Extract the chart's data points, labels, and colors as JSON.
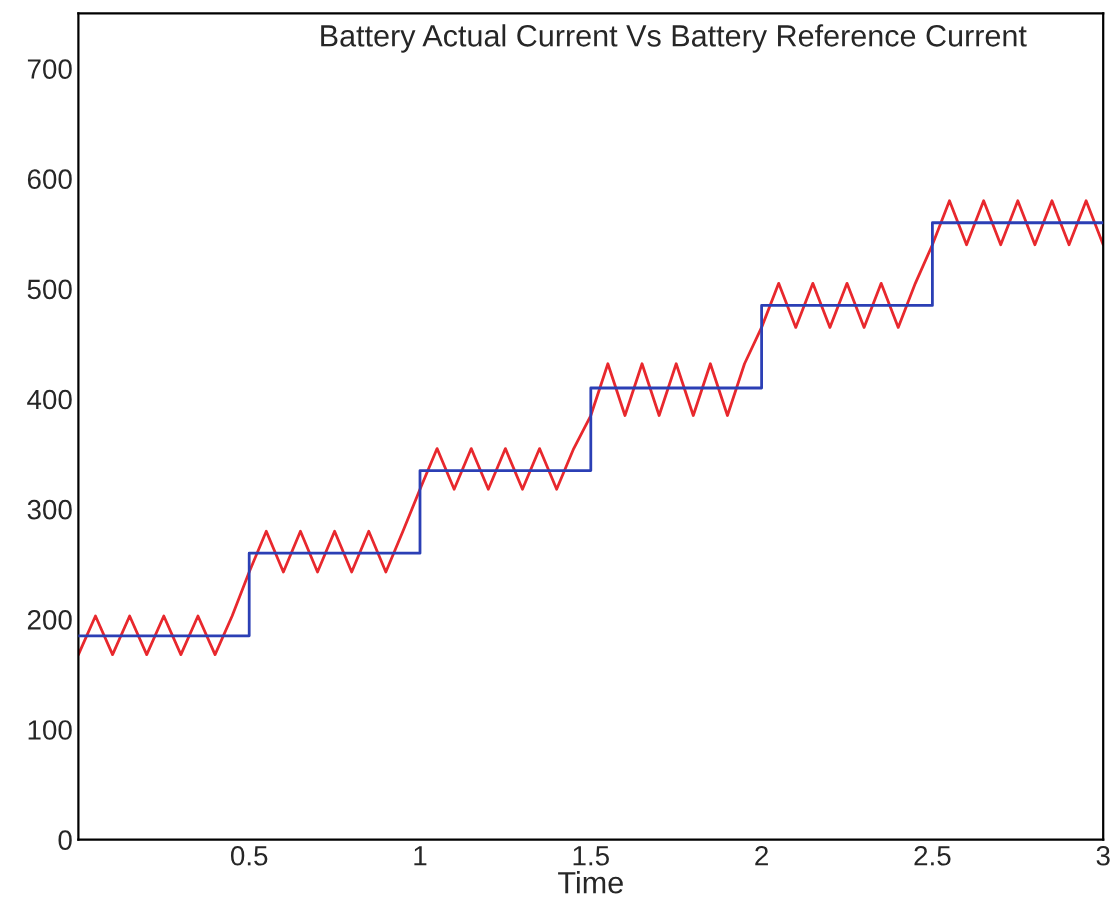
{
  "chart_data": {
    "type": "line",
    "title": "Battery Actual Current Vs Battery Reference Current",
    "xlabel": "Time",
    "xlim": [
      0,
      3
    ],
    "xticks": [
      {
        "value": 0,
        "label": null
      },
      0.5,
      1,
      1.5,
      2,
      2.5,
      3
    ],
    "ylim": [
      0,
      750
    ],
    "yticks": [
      0,
      100,
      200,
      300,
      400,
      500,
      600,
      700
    ],
    "grid": false,
    "legend": false,
    "series": [
      {
        "color": "#e8282d",
        "x": [
          0,
          0.05,
          0.1,
          0.15,
          0.2,
          0.25,
          0.3,
          0.35,
          0.4,
          0.45,
          0.5,
          0.55,
          0.6,
          0.65,
          0.7,
          0.75,
          0.8,
          0.85,
          0.9,
          0.95,
          1,
          1.05,
          1.1,
          1.15,
          1.2,
          1.25,
          1.3,
          1.35,
          1.4,
          1.45,
          1.5,
          1.55,
          1.6,
          1.65,
          1.7,
          1.75,
          1.8,
          1.85,
          1.9,
          1.95,
          2,
          2.05,
          2.1,
          2.15,
          2.2,
          2.25,
          2.3,
          2.35,
          2.4,
          2.45,
          2.5,
          2.55,
          2.6,
          2.65,
          2.7,
          2.75,
          2.8,
          2.85,
          2.9,
          2.95,
          3
        ],
        "values": [
          168,
          203,
          168,
          203,
          168,
          203,
          168,
          203,
          168,
          203,
          243,
          280,
          243,
          280,
          243,
          280,
          243,
          280,
          243,
          280,
          318,
          355,
          318,
          355,
          318,
          355,
          318,
          355,
          318,
          355,
          385,
          432,
          385,
          432,
          385,
          432,
          385,
          432,
          385,
          432,
          465,
          505,
          465,
          505,
          465,
          505,
          465,
          505,
          465,
          505,
          540,
          580,
          540,
          580,
          540,
          580,
          540,
          580,
          540,
          580,
          540
        ]
      },
      {
        "type": "step",
        "color": "#2b3fb5",
        "x": [
          0,
          0.5,
          1,
          1.5,
          2,
          2.5,
          3
        ],
        "values": [
          185,
          260,
          335,
          410,
          485,
          560,
          560
        ]
      }
    ]
  }
}
